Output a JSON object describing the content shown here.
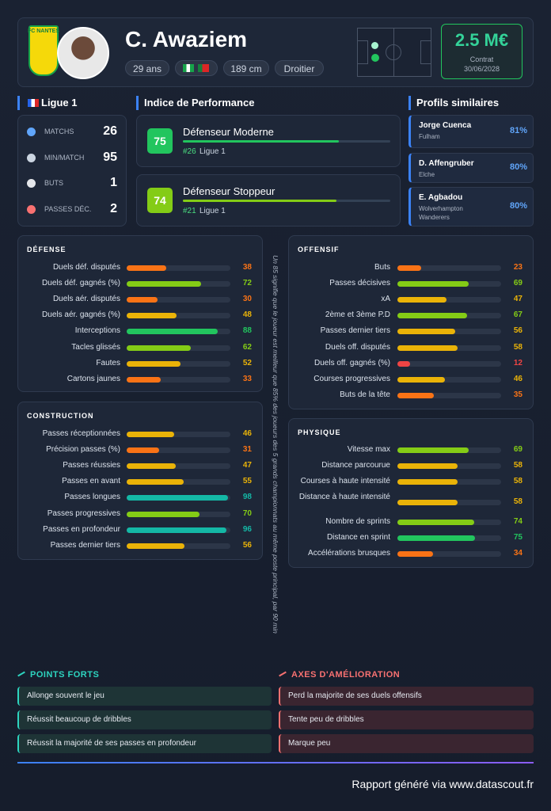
{
  "header": {
    "club_logo_text": "FC NANTES",
    "name": "C. Awaziem",
    "tags": [
      "29 ans",
      "189 cm",
      "Droitier"
    ],
    "value": "2.5 M€",
    "contract_label": "Contrat",
    "contract_date": "30/06/2028"
  },
  "league": {
    "title": "Ligue 1",
    "stats": [
      {
        "label": "MATCHS",
        "value": 26
      },
      {
        "label": "MIN/MATCH",
        "value": 95
      },
      {
        "label": "BUTS",
        "value": 1
      },
      {
        "label": "PASSES DÉC.",
        "value": 2
      }
    ]
  },
  "performance": {
    "title": "Indice de Performance",
    "items": [
      {
        "score": 75,
        "role": "Défenseur Moderne",
        "rank": "#26",
        "league": "Ligue 1"
      },
      {
        "score": 74,
        "role": "Défenseur Stoppeur",
        "rank": "#21",
        "league": "Ligue 1"
      }
    ]
  },
  "similar": {
    "title": "Profils similaires",
    "items": [
      {
        "name": "Jorge Cuenca",
        "club": "Fulham",
        "similarity": "81%"
      },
      {
        "name": "D. Affengruber",
        "club": "Elche",
        "similarity": "80%"
      },
      {
        "name": "E. Agbadou",
        "club": "Wolverhampton Wanderers",
        "similarity": "80%"
      }
    ]
  },
  "defense": {
    "title": "DÉFENSE",
    "metrics": [
      {
        "label": "Duels déf. disputés",
        "value": 38
      },
      {
        "label": "Duels déf. gagnés (%)",
        "value": 72
      },
      {
        "label": "Duels aér. disputés",
        "value": 30
      },
      {
        "label": "Duels aér. gagnés (%)",
        "value": 48
      },
      {
        "label": "Interceptions",
        "value": 88
      },
      {
        "label": "Tacles glissés",
        "value": 62
      },
      {
        "label": "Fautes",
        "value": 52
      },
      {
        "label": "Cartons jaunes",
        "value": 33
      }
    ]
  },
  "offensive": {
    "title": "OFFENSIF",
    "metrics": [
      {
        "label": "Buts",
        "value": 23
      },
      {
        "label": "Passes décisives",
        "value": 69
      },
      {
        "label": "xA",
        "value": 47
      },
      {
        "label": "2ème et 3ème P.D",
        "value": 67
      },
      {
        "label": "Passes dernier tiers",
        "value": 56
      },
      {
        "label": "Duels off. disputés",
        "value": 58
      },
      {
        "label": "Duels off. gagnés (%)",
        "value": 12
      },
      {
        "label": "Courses progressives",
        "value": 46
      },
      {
        "label": "Buts de la tête",
        "value": 35
      }
    ]
  },
  "construction": {
    "title": "CONSTRUCTION",
    "metrics": [
      {
        "label": "Passes réceptionnées",
        "value": 46
      },
      {
        "label": "Précision passes (%)",
        "value": 31
      },
      {
        "label": "Passes réussies",
        "value": 47
      },
      {
        "label": "Passes en avant",
        "value": 55
      },
      {
        "label": "Passes longues",
        "value": 98
      },
      {
        "label": "Passes progressives",
        "value": 70
      },
      {
        "label": "Passes en profondeur",
        "value": 96
      },
      {
        "label": "Passes dernier tiers",
        "value": 56
      }
    ]
  },
  "physique": {
    "title": "PHYSIQUE",
    "metrics": [
      {
        "label": "Vitesse max",
        "value": 69
      },
      {
        "label": "Distance parcourue",
        "value": 58
      },
      {
        "label": "Courses à haute intensité",
        "value": 58
      },
      {
        "label": "Distance à haute intensité",
        "value": 58
      },
      {
        "label": "Nombre de sprints",
        "value": 74
      },
      {
        "label": "Distance en sprint",
        "value": 75
      },
      {
        "label": "Accélérations brusques",
        "value": 34
      }
    ]
  },
  "note": "Un 85 signifie que le joueur est meilleur que 85% des joueurs des 5 grands championnats au même poste principal, par 90 min",
  "strengths": {
    "title": "POINTS FORTS",
    "items": [
      "Allonge souvent le jeu",
      "Réussit beaucoup de dribbles",
      "Réussit la majorité de ses passes en profondeur"
    ]
  },
  "weaknesses": {
    "title": "AXES D'AMÉLIORATION",
    "items": [
      "Perd la majorite de ses duels offensifs",
      "Tente peu de dribbles",
      "Marque peu"
    ]
  },
  "footer": "Rapport généré via www.datascout.fr"
}
